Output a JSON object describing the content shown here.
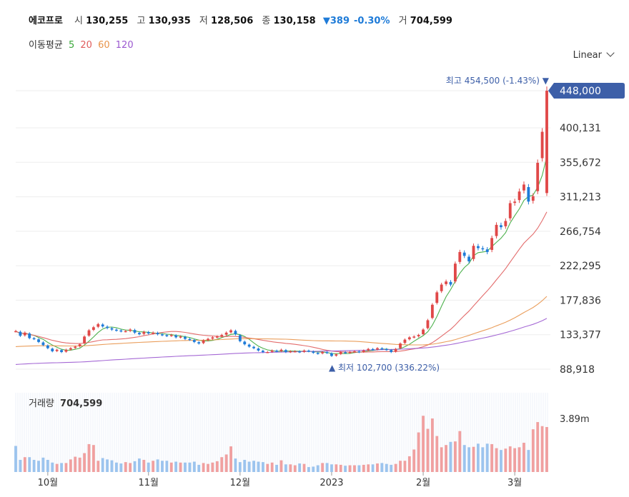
{
  "header": {
    "name": "에코프로",
    "open_label": "시",
    "open": "130,255",
    "high_label": "고",
    "high": "130,935",
    "low_label": "저",
    "low": "128,506",
    "close_label": "종",
    "close": "130,158",
    "change": "▼389",
    "change_pct": "-0.30%",
    "volume_label": "거",
    "volume": "704,599"
  },
  "ma_legend": {
    "title": "이동평균",
    "periods": [
      {
        "label": "5",
        "color": "#3aa83a"
      },
      {
        "label": "20",
        "color": "#e05c5c"
      },
      {
        "label": "60",
        "color": "#e8944a"
      },
      {
        "label": "120",
        "color": "#9b59d0"
      }
    ]
  },
  "scale_selector": "Linear",
  "colors": {
    "up": "#e04848",
    "down": "#1e7bd8",
    "vol_up": "#f0a0a0",
    "vol_down": "#9cc4ee",
    "price_tag": "#3d5fa8"
  },
  "chart_data": {
    "type": "candlestick",
    "price_axis": {
      "ticks": [
        "88,918",
        "133,377",
        "177,836",
        "222,295",
        "266,754",
        "311,213",
        "355,672",
        "400,131"
      ],
      "ylim": [
        88918,
        448000
      ]
    },
    "current_price_tag": "448,000",
    "max_annotation": {
      "label": "최고",
      "value": "454,500",
      "pct": "(-1.43%)",
      "marker": "▼"
    },
    "min_annotation": {
      "label": "최저",
      "value": "102,700",
      "pct": "(336.22%)",
      "marker": "▲"
    },
    "x_labels": [
      "10월",
      "11월",
      "12월",
      "2023",
      "2월",
      "3월"
    ],
    "x_label_index": [
      7,
      29,
      49,
      69,
      89,
      109
    ],
    "close": [
      138000,
      132000,
      136000,
      129000,
      128000,
      124000,
      120000,
      116000,
      112000,
      114000,
      111000,
      114000,
      116000,
      118000,
      121000,
      131000,
      139000,
      143000,
      147000,
      144000,
      142000,
      140000,
      139000,
      138000,
      138000,
      140000,
      136000,
      134000,
      137000,
      135000,
      136000,
      134000,
      133000,
      132000,
      133000,
      130000,
      131000,
      128000,
      127000,
      124000,
      122000,
      126000,
      128000,
      130000,
      131000,
      133000,
      136000,
      139000,
      134000,
      125000,
      121000,
      118000,
      116000,
      113000,
      111000,
      111000,
      113000,
      112000,
      114000,
      111000,
      112000,
      112000,
      111000,
      113000,
      112000,
      110000,
      109000,
      111000,
      110000,
      106000,
      108000,
      111000,
      110000,
      111000,
      112000,
      111000,
      113000,
      115000,
      114000,
      116000,
      115000,
      114000,
      111000,
      115000,
      122000,
      127000,
      130000,
      131000,
      133000,
      140000,
      152000,
      172000,
      188000,
      198000,
      202000,
      198000,
      225000,
      240000,
      235000,
      228000,
      248000,
      245000,
      244000,
      240000,
      258000,
      275000,
      272000,
      280000,
      303000,
      305000,
      318000,
      327000,
      305000,
      312000,
      355000,
      395000,
      448000
    ],
    "volume": [
      0.58,
      0.27,
      0.33,
      0.33,
      0.27,
      0.25,
      0.32,
      0.27,
      0.21,
      0.18,
      0.2,
      0.2,
      0.28,
      0.34,
      0.32,
      0.42,
      0.62,
      0.6,
      0.25,
      0.31,
      0.28,
      0.26,
      0.21,
      0.19,
      0.22,
      0.2,
      0.24,
      0.3,
      0.27,
      0.21,
      0.25,
      0.28,
      0.25,
      0.25,
      0.21,
      0.23,
      0.21,
      0.21,
      0.21,
      0.23,
      0.16,
      0.2,
      0.18,
      0.21,
      0.24,
      0.33,
      0.39,
      0.57,
      0.3,
      0.22,
      0.27,
      0.23,
      0.25,
      0.23,
      0.22,
      0.18,
      0.21,
      0.16,
      0.26,
      0.17,
      0.17,
      0.15,
      0.19,
      0.18,
      0.11,
      0.12,
      0.15,
      0.2,
      0.2,
      0.17,
      0.17,
      0.16,
      0.14,
      0.15,
      0.15,
      0.15,
      0.16,
      0.17,
      0.17,
      0.19,
      0.2,
      0.18,
      0.16,
      0.18,
      0.25,
      0.25,
      0.35,
      0.5,
      0.88,
      1.25,
      0.96,
      1.19,
      0.8,
      0.55,
      0.6,
      0.67,
      0.68,
      0.91,
      0.6,
      0.55,
      0.56,
      0.63,
      0.55,
      0.63,
      0.62,
      0.53,
      0.49,
      0.52,
      0.57,
      0.53,
      0.55,
      0.65,
      0.49,
      0.95,
      1.11,
      1.02,
      1.0
    ]
  },
  "volume_panel": {
    "title": "거래량",
    "value": "704,599",
    "axis_label": "3.89m"
  }
}
